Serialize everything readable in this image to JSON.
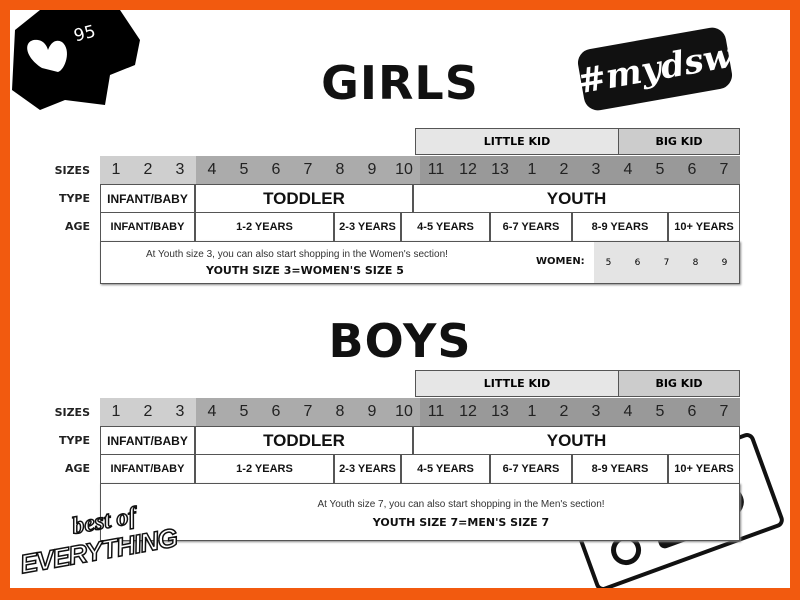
{
  "badge": {
    "likes": "95",
    "icon": "heart-icon"
  },
  "logos": {
    "hashtag": "#mydsw",
    "tagline_top": "best of",
    "tagline_bottom": "EVERYTHING"
  },
  "row_labels": {
    "sizes": "SIZES",
    "type": "TYPE",
    "age": "AGE"
  },
  "girls": {
    "title": "GIRLS",
    "groups": [
      "LITTLE KID",
      "BIG KID"
    ],
    "sizes": [
      "1",
      "2",
      "3",
      "4",
      "5",
      "6",
      "7",
      "8",
      "9",
      "10",
      "11",
      "12",
      "13",
      "1",
      "2",
      "3",
      "4",
      "5",
      "6",
      "7"
    ],
    "types": [
      "INFANT/BABY",
      "TODDLER",
      "YOUTH"
    ],
    "ages": [
      "INFANT/BABY",
      "1-2 YEARS",
      "2-3 YEARS",
      "4-5 YEARS",
      "6-7 YEARS",
      "8-9 YEARS",
      "10+ YEARS"
    ],
    "note": "At Youth size 3, you can also start shopping in the Women's section!",
    "conversion": "YOUTH SIZE 3=WOMEN'S SIZE 5",
    "women_label": "WOMEN:",
    "women_sizes": [
      "5",
      "6",
      "7",
      "8",
      "9"
    ]
  },
  "boys": {
    "title": "BOYS",
    "groups": [
      "LITTLE KID",
      "BIG KID"
    ],
    "sizes": [
      "1",
      "2",
      "3",
      "4",
      "5",
      "6",
      "7",
      "8",
      "9",
      "10",
      "11",
      "12",
      "13",
      "1",
      "2",
      "3",
      "4",
      "5",
      "6",
      "7"
    ],
    "types": [
      "INFANT/BABY",
      "TODDLER",
      "YOUTH"
    ],
    "ages": [
      "INFANT/BABY",
      "1-2 YEARS",
      "2-3 YEARS",
      "4-5 YEARS",
      "6-7 YEARS",
      "8-9 YEARS",
      "10+ YEARS"
    ],
    "note": "At Youth size 7, you can also start shopping in the Men's section!",
    "conversion": "YOUTH SIZE 7=MEN'S SIZE 7"
  },
  "colors": {
    "border": "#f25a0f",
    "shade_light": "#cfcfcf",
    "shade_mid": "#ababab",
    "shade_dark": "#999999",
    "little_kid": "#e6e6e6",
    "big_kid": "#cccccc"
  }
}
